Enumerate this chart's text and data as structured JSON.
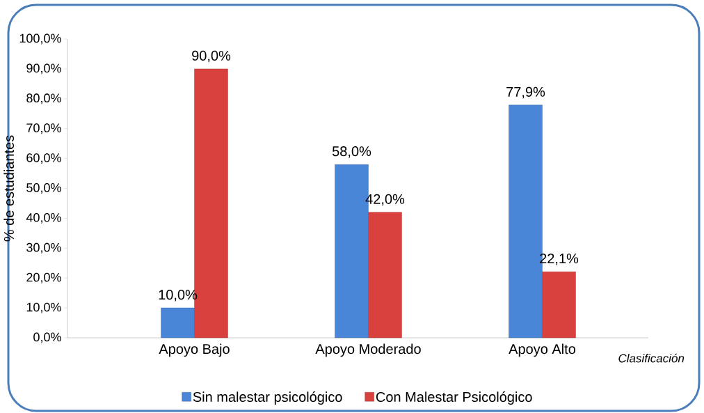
{
  "chart_data": {
    "type": "bar",
    "categories": [
      "Apoyo Bajo",
      "Apoyo Moderado",
      "Apoyo Alto"
    ],
    "series": [
      {
        "name": "Sin malestar psicológico",
        "color": "#4a86d8",
        "values": [
          10.0,
          58.0,
          77.9
        ],
        "value_labels": [
          "10,0%",
          "58,0%",
          "77,9%"
        ]
      },
      {
        "name": "Con Malestar Psicológico",
        "color": "#d9413f",
        "values": [
          90.0,
          42.0,
          22.1
        ],
        "value_labels": [
          "90,0%",
          "42,0%",
          "22,1%"
        ]
      }
    ],
    "xlabel": "Clasificación",
    "ylabel": "% de estudiantes",
    "ylim": [
      0,
      100
    ],
    "yticks": [
      {
        "value": 0,
        "label": "0,0%"
      },
      {
        "value": 10,
        "label": "10,0%"
      },
      {
        "value": 20,
        "label": "20,0%"
      },
      {
        "value": 30,
        "label": "30,0%"
      },
      {
        "value": 40,
        "label": "40,0%"
      },
      {
        "value": 50,
        "label": "50,0%"
      },
      {
        "value": 60,
        "label": "60,0%"
      },
      {
        "value": 70,
        "label": "70,0%"
      },
      {
        "value": 80,
        "label": "80,0%"
      },
      {
        "value": 90,
        "label": "90,0%"
      },
      {
        "value": 100,
        "label": "100,0%"
      }
    ],
    "grid": false,
    "legend": "bottom"
  }
}
